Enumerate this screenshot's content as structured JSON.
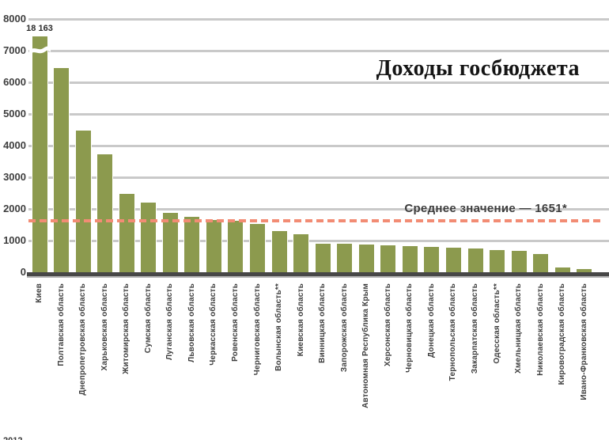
{
  "header": {
    "title": "Доходы госбюджета"
  },
  "annotations": {
    "average_label": "Среднее значение — 1651*",
    "first_bar_value_label": "18 163",
    "footnote_partial": "2012"
  },
  "colors": {
    "bar": "#8c9a4e",
    "bar_outline": "#ffffff",
    "gridline": "#c9c9c9",
    "axis": "#474747",
    "average_line": "#f28c74",
    "text": "#3e3e3e",
    "title": "#151515",
    "background": "#ffffff"
  },
  "chart_data": {
    "type": "bar",
    "title": "Доходы госбюджета",
    "xlabel": "",
    "ylabel": "",
    "ylim": [
      0,
      8000
    ],
    "yticks": [
      0,
      1000,
      2000,
      3000,
      4000,
      5000,
      6000,
      7000,
      8000
    ],
    "grid": true,
    "legend": "none",
    "bar_color": "#8c9a4e",
    "average_line": {
      "value": 1651,
      "label": "Среднее значение — 1651*",
      "color": "#f28c74",
      "style": "dashed"
    },
    "truncated_bar": {
      "category": "Киев",
      "value_label": "18 163",
      "display_value": 7475
    },
    "categories": [
      "Киев",
      "Полтавская область",
      "Днепропетровская область",
      "Харьковская область",
      "Житомирская область",
      "Сумская область",
      "Луганская область",
      "Львовская область",
      "Черкасская область",
      "Ровенская область",
      "Черниговская область",
      "Волынская область**",
      "Киевская область",
      "Винницкая область",
      "Запорожская область",
      "Автономная Республика Крым",
      "Херсонская область",
      "Черновицкая область",
      "Донецкая область",
      "Тернопольская область",
      "Закарпатская область",
      "Одесская область**",
      "Хмельницкая область",
      "Николаевская область",
      "Кировоградская область",
      "Ивано-Франковская область"
    ],
    "values": [
      18163,
      6480,
      4500,
      3760,
      2500,
      2230,
      1900,
      1780,
      1680,
      1650,
      1550,
      1330,
      1230,
      935,
      925,
      910,
      865,
      845,
      820,
      810,
      775,
      735,
      695,
      610,
      180,
      130
    ]
  }
}
